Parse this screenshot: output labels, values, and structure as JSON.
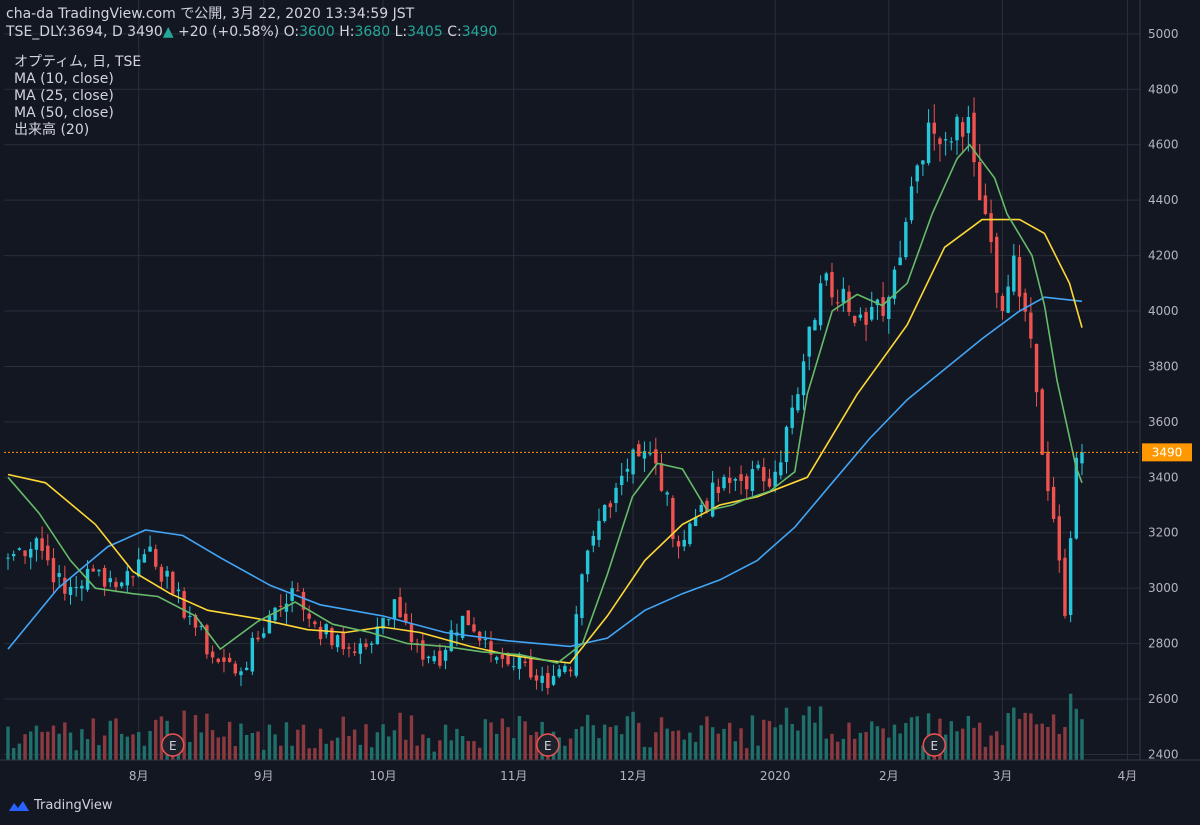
{
  "header": {
    "line1": "cha-da TradingView.com で公開, 3月 22, 2020 13:34:59 JST",
    "symbol": "TSE_DLY:3694, D 3490",
    "change_arrow": "▲",
    "change": "+20 (+0.58%)",
    "o_label": "O:",
    "o": "3600",
    "h_label": "H:",
    "h": "3680",
    "l_label": "L:",
    "l": "3405",
    "c_label": "C:",
    "c": "3490"
  },
  "legend": {
    "title": "オプティム, 日, TSE",
    "items": [
      "MA (10, close)",
      "MA (25, close)",
      "MA (50, close)",
      "出来高 (20)"
    ]
  },
  "brand": {
    "name": "TradingView"
  },
  "colors": {
    "background": "#131722",
    "grid": "#2a2e39",
    "up": "#26c6da",
    "down": "#ef5350",
    "vol_up": "#1f6f6a",
    "vol_down": "#8b3a3f",
    "ma10": "#66bb6a",
    "ma25": "#fdd835",
    "ma50": "#42a5f5",
    "price_line": "#ff9800"
  },
  "chart_data": {
    "type": "candlestick",
    "y_ticks": [
      2400,
      2600,
      2800,
      3000,
      3200,
      3400,
      3600,
      3800,
      4000,
      4200,
      4400,
      4600,
      4800,
      5000
    ],
    "ylim": [
      2380,
      5050
    ],
    "x_ticks": [
      "8月",
      "9月",
      "10月",
      "11月",
      "12月",
      "2020",
      "2月",
      "3月",
      "4月"
    ],
    "last_price": 3490,
    "earnings_markers": [
      "E",
      "E",
      "E"
    ],
    "ohlc_keypoints": [
      {
        "date": "2019-07-01",
        "close": 3110
      },
      {
        "date": "2019-07-08",
        "close": 3180
      },
      {
        "date": "2019-07-15",
        "close": 2980
      },
      {
        "date": "2019-07-22",
        "close": 3060
      },
      {
        "date": "2019-07-29",
        "close": 3020
      },
      {
        "date": "2019-08-05",
        "close": 3150
      },
      {
        "date": "2019-08-09",
        "close": 2980
      },
      {
        "date": "2019-08-14",
        "close": 2900
      },
      {
        "date": "2019-08-20",
        "close": 2750
      },
      {
        "date": "2019-08-27",
        "close": 2700
      },
      {
        "date": "2019-09-03",
        "close": 2900
      },
      {
        "date": "2019-09-09",
        "close": 3000
      },
      {
        "date": "2019-09-13",
        "close": 2870
      },
      {
        "date": "2019-09-20",
        "close": 2780
      },
      {
        "date": "2019-09-27",
        "close": 2800
      },
      {
        "date": "2019-10-03",
        "close": 2960
      },
      {
        "date": "2019-10-09",
        "close": 2800
      },
      {
        "date": "2019-10-15",
        "close": 2720
      },
      {
        "date": "2019-10-21",
        "close": 2900
      },
      {
        "date": "2019-10-28",
        "close": 2760
      },
      {
        "date": "2019-11-05",
        "close": 2730
      },
      {
        "date": "2019-11-11",
        "close": 2640
      },
      {
        "date": "2019-11-15",
        "close": 2700
      },
      {
        "date": "2019-11-19",
        "close": 3050
      },
      {
        "date": "2019-11-25",
        "close": 3300
      },
      {
        "date": "2019-12-02",
        "close": 3500
      },
      {
        "date": "2019-12-06",
        "close": 3450
      },
      {
        "date": "2019-12-12",
        "close": 3150
      },
      {
        "date": "2019-12-18",
        "close": 3300
      },
      {
        "date": "2019-12-25",
        "close": 3380
      },
      {
        "date": "2020-01-06",
        "close": 3420
      },
      {
        "date": "2020-01-10",
        "close": 3700
      },
      {
        "date": "2020-01-16",
        "close": 4100
      },
      {
        "date": "2020-01-22",
        "close": 4080
      },
      {
        "date": "2020-01-28",
        "close": 3950
      },
      {
        "date": "2020-02-03",
        "close": 4050
      },
      {
        "date": "2020-02-07",
        "close": 4450
      },
      {
        "date": "2020-02-12",
        "close": 4680
      },
      {
        "date": "2020-02-17",
        "close": 4620
      },
      {
        "date": "2020-02-21",
        "close": 4700
      },
      {
        "date": "2020-02-26",
        "close": 4350
      },
      {
        "date": "2020-03-02",
        "close": 4000
      },
      {
        "date": "2020-03-04",
        "close": 4200
      },
      {
        "date": "2020-03-09",
        "close": 3900
      },
      {
        "date": "2020-03-12",
        "close": 3350
      },
      {
        "date": "2020-03-16",
        "close": 3100
      },
      {
        "date": "2020-03-17",
        "close": 2900
      },
      {
        "date": "2020-03-19",
        "close": 3470
      },
      {
        "date": "2020-03-20",
        "close": 3490
      }
    ],
    "ma10": [
      [
        0,
        3400
      ],
      [
        5,
        3270
      ],
      [
        10,
        3100
      ],
      [
        14,
        3000
      ],
      [
        20,
        2980
      ],
      [
        24,
        2970
      ],
      [
        30,
        2900
      ],
      [
        34,
        2780
      ],
      [
        40,
        2880
      ],
      [
        46,
        2950
      ],
      [
        52,
        2870
      ],
      [
        58,
        2840
      ],
      [
        64,
        2800
      ],
      [
        70,
        2790
      ],
      [
        76,
        2770
      ],
      [
        82,
        2760
      ],
      [
        86,
        2740
      ],
      [
        88,
        2730
      ],
      [
        92,
        2800
      ],
      [
        96,
        3050
      ],
      [
        100,
        3330
      ],
      [
        104,
        3450
      ],
      [
        108,
        3430
      ],
      [
        112,
        3280
      ],
      [
        116,
        3300
      ],
      [
        118,
        3320
      ],
      [
        122,
        3350
      ],
      [
        126,
        3420
      ],
      [
        128,
        3700
      ],
      [
        132,
        4000
      ],
      [
        136,
        4060
      ],
      [
        140,
        4020
      ],
      [
        144,
        4100
      ],
      [
        148,
        4350
      ],
      [
        152,
        4550
      ],
      [
        154,
        4600
      ],
      [
        158,
        4480
      ],
      [
        160,
        4350
      ],
      [
        164,
        4200
      ],
      [
        166,
        4020
      ],
      [
        168,
        3750
      ],
      [
        171,
        3440
      ],
      [
        172,
        3380
      ]
    ],
    "ma25": [
      [
        0,
        3410
      ],
      [
        6,
        3380
      ],
      [
        14,
        3230
      ],
      [
        20,
        3060
      ],
      [
        26,
        2980
      ],
      [
        32,
        2920
      ],
      [
        40,
        2890
      ],
      [
        48,
        2850
      ],
      [
        54,
        2840
      ],
      [
        60,
        2860
      ],
      [
        66,
        2840
      ],
      [
        74,
        2790
      ],
      [
        80,
        2760
      ],
      [
        86,
        2740
      ],
      [
        90,
        2730
      ],
      [
        96,
        2900
      ],
      [
        102,
        3100
      ],
      [
        108,
        3230
      ],
      [
        114,
        3300
      ],
      [
        120,
        3330
      ],
      [
        128,
        3400
      ],
      [
        136,
        3700
      ],
      [
        144,
        3950
      ],
      [
        150,
        4230
      ],
      [
        156,
        4330
      ],
      [
        162,
        4330
      ],
      [
        166,
        4280
      ],
      [
        170,
        4100
      ],
      [
        172,
        3940
      ]
    ],
    "ma50": [
      [
        0,
        2780
      ],
      [
        8,
        3000
      ],
      [
        16,
        3150
      ],
      [
        22,
        3210
      ],
      [
        28,
        3190
      ],
      [
        34,
        3110
      ],
      [
        42,
        3010
      ],
      [
        50,
        2940
      ],
      [
        60,
        2900
      ],
      [
        70,
        2840
      ],
      [
        80,
        2810
      ],
      [
        90,
        2790
      ],
      [
        96,
        2820
      ],
      [
        102,
        2920
      ],
      [
        108,
        2980
      ],
      [
        114,
        3030
      ],
      [
        120,
        3100
      ],
      [
        126,
        3220
      ],
      [
        132,
        3380
      ],
      [
        138,
        3540
      ],
      [
        144,
        3680
      ],
      [
        150,
        3790
      ],
      [
        156,
        3900
      ],
      [
        162,
        4000
      ],
      [
        166,
        4050
      ],
      [
        170,
        4040
      ],
      [
        172,
        4035
      ]
    ]
  }
}
